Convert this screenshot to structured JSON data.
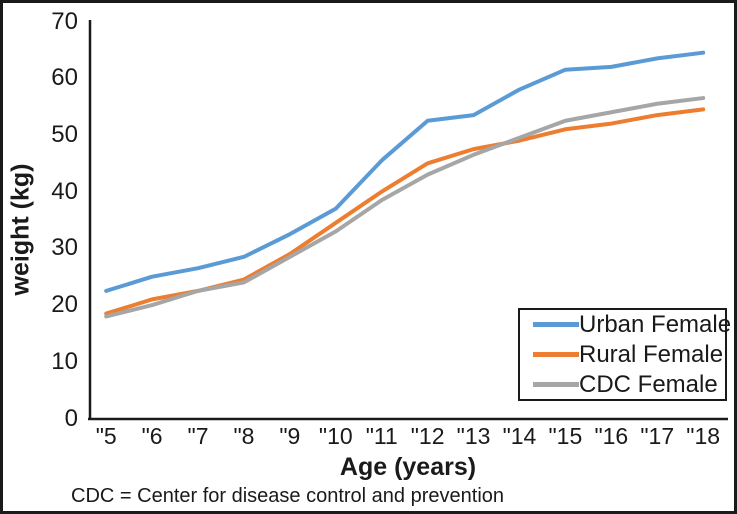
{
  "chart_data": {
    "type": "line",
    "title": "",
    "xlabel": "Age (years)",
    "ylabel": "weight (kg)",
    "footnote": "CDC = Center for disease control and prevention",
    "x_tick_labels": [
      "\"5",
      "\"6",
      "\"7",
      "\"8",
      "\"9",
      "\"10",
      "\"11",
      "\"12",
      "\"13",
      "\"14",
      "\"15",
      "\"16",
      "\"17",
      "\"18"
    ],
    "ages": [
      5,
      6,
      7,
      8,
      9,
      10,
      11,
      12,
      13,
      14,
      15,
      16,
      17,
      18
    ],
    "y_ticks": [
      0,
      10,
      20,
      30,
      40,
      50,
      60,
      70
    ],
    "ylim": [
      0,
      70
    ],
    "grid": false,
    "legend_position": "lower right",
    "series": [
      {
        "name": "Urban Female",
        "color": "#5B9BD5",
        "values": [
          22.5,
          25,
          26.5,
          28.5,
          32.5,
          37,
          45.5,
          52.5,
          53.5,
          58,
          61.5,
          62,
          63.5,
          64.5
        ]
      },
      {
        "name": "Rural Female",
        "color": "#ED7D31",
        "values": [
          18.5,
          21,
          22.5,
          24.5,
          29,
          34.5,
          40,
          45,
          47.5,
          49,
          51,
          52,
          53.5,
          54.5
        ]
      },
      {
        "name": "CDC Female",
        "color": "#A6A6A6",
        "values": [
          18,
          20,
          22.5,
          24,
          28.5,
          33,
          38.5,
          43,
          46.5,
          49.5,
          52.5,
          54,
          55.5,
          56.5
        ]
      }
    ],
    "axis_color": "#1a1a1a",
    "line_width": 4
  }
}
